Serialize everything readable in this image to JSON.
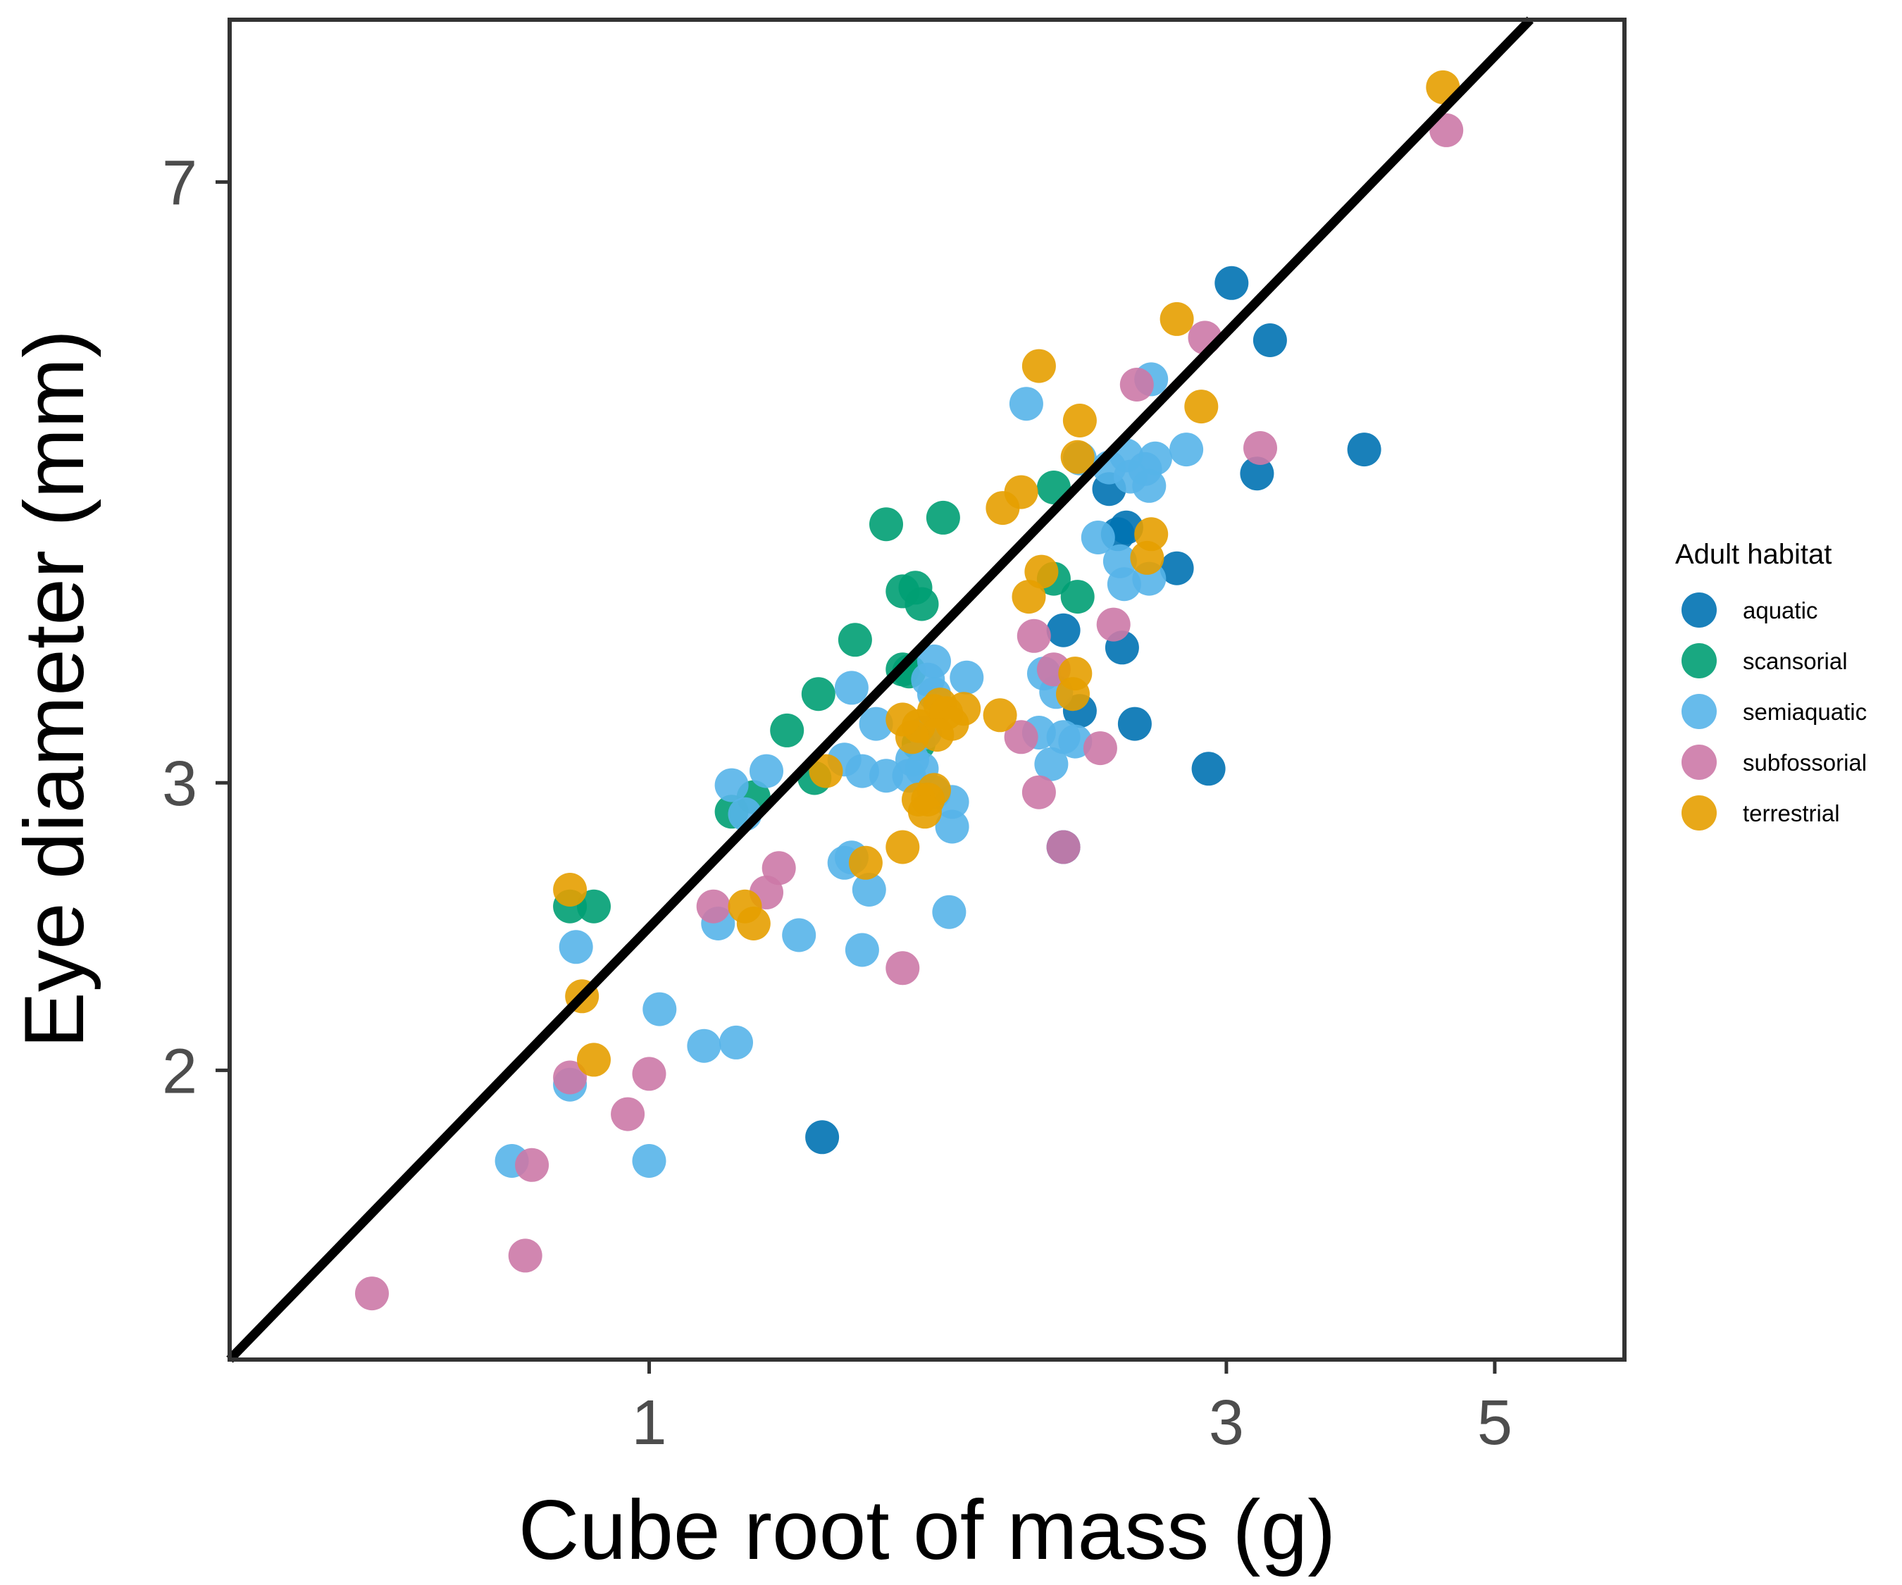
{
  "chart_data": {
    "type": "scatter",
    "title": "",
    "xlabel": "Cube root of mass (g)",
    "ylabel": "Eye diameter (mm)",
    "x_scale": "log",
    "y_scale": "log",
    "xlim": [
      0.45,
      6.4
    ],
    "ylim": [
      1.33,
      8.8
    ],
    "x_ticks": [
      1,
      3,
      5
    ],
    "x_tick_labels": [
      "1",
      "3",
      "5"
    ],
    "y_ticks": [
      2,
      3,
      7
    ],
    "y_tick_labels": [
      "2",
      "3",
      "7"
    ],
    "grid": false,
    "legend": {
      "title": "Adult habitat",
      "position": "right"
    },
    "fit_line": {
      "color": "#000000",
      "points": [
        [
          0.45,
          1.33
        ],
        [
          5.35,
          8.8
        ]
      ]
    },
    "series": [
      {
        "name": "aquatic",
        "color": "#0072B2",
        "points": [
          [
            3.03,
            6.07
          ],
          [
            3.26,
            5.6
          ],
          [
            3.9,
            4.8
          ],
          [
            3.18,
            4.64
          ],
          [
            2.4,
            4.54
          ],
          [
            2.48,
            4.3
          ],
          [
            2.44,
            4.26
          ],
          [
            2.73,
            4.06
          ],
          [
            2.2,
            3.72
          ],
          [
            2.46,
            3.63
          ],
          [
            2.27,
            3.32
          ],
          [
            2.52,
            3.26
          ],
          [
            2.9,
            3.06
          ],
          [
            2.2,
            2.74
          ],
          [
            1.39,
            1.82
          ]
        ]
      },
      {
        "name": "scansorial",
        "color": "#009E73",
        "points": [
          [
            1.57,
            4.32
          ],
          [
            1.75,
            4.36
          ],
          [
            1.62,
            3.93
          ],
          [
            1.66,
            3.95
          ],
          [
            1.68,
            3.86
          ],
          [
            2.16,
            4.55
          ],
          [
            2.16,
            4.0
          ],
          [
            2.26,
            3.9
          ],
          [
            1.48,
            3.67
          ],
          [
            1.62,
            3.52
          ],
          [
            1.64,
            3.51
          ],
          [
            1.38,
            3.4
          ],
          [
            1.3,
            3.23
          ],
          [
            1.17,
            2.88
          ],
          [
            1.67,
            3.17
          ],
          [
            1.37,
            3.02
          ],
          [
            1.22,
            2.94
          ],
          [
            0.86,
            2.52
          ],
          [
            0.9,
            2.52
          ]
        ]
      },
      {
        "name": "semiaquatic",
        "color": "#56B4E9",
        "points": [
          [
            2.6,
            5.3
          ],
          [
            2.05,
            5.12
          ],
          [
            2.78,
            4.8
          ],
          [
            2.27,
            4.74
          ],
          [
            2.4,
            4.68
          ],
          [
            2.48,
            4.76
          ],
          [
            2.57,
            4.67
          ],
          [
            2.62,
            4.74
          ],
          [
            2.5,
            4.62
          ],
          [
            2.59,
            4.56
          ],
          [
            2.35,
            4.24
          ],
          [
            2.45,
            4.1
          ],
          [
            2.59,
            4.0
          ],
          [
            2.47,
            3.97
          ],
          [
            1.72,
            3.56
          ],
          [
            1.7,
            3.47
          ],
          [
            2.12,
            3.5
          ],
          [
            2.17,
            3.41
          ],
          [
            1.47,
            3.43
          ],
          [
            1.54,
            3.26
          ],
          [
            1.72,
            3.4
          ],
          [
            1.83,
            3.48
          ],
          [
            1.69,
            3.22
          ],
          [
            2.1,
            3.22
          ],
          [
            2.2,
            3.2
          ],
          [
            2.25,
            3.18
          ],
          [
            2.15,
            3.08
          ],
          [
            1.68,
            3.06
          ],
          [
            1.64,
            3.03
          ],
          [
            1.57,
            3.03
          ],
          [
            1.5,
            3.05
          ],
          [
            1.65,
            3.1
          ],
          [
            1.45,
            3.1
          ],
          [
            1.25,
            3.05
          ],
          [
            1.72,
            2.96
          ],
          [
            1.78,
            2.92
          ],
          [
            1.17,
            2.99
          ],
          [
            1.2,
            2.87
          ],
          [
            1.78,
            2.82
          ],
          [
            1.47,
            2.7
          ],
          [
            1.45,
            2.68
          ],
          [
            1.52,
            2.58
          ],
          [
            1.77,
            2.5
          ],
          [
            1.14,
            2.46
          ],
          [
            1.33,
            2.42
          ],
          [
            1.5,
            2.37
          ],
          [
            0.87,
            2.38
          ],
          [
            1.02,
            2.18
          ],
          [
            1.11,
            2.07
          ],
          [
            1.18,
            2.08
          ],
          [
            0.86,
            1.96
          ],
          [
            0.77,
            1.76
          ],
          [
            1.0,
            1.76
          ]
        ]
      },
      {
        "name": "subfossorial",
        "color": "#CC79A7",
        "points": [
          [
            4.56,
            7.53
          ],
          [
            2.88,
            5.62
          ],
          [
            2.53,
            5.26
          ],
          [
            3.2,
            4.81
          ],
          [
            2.42,
            3.75
          ],
          [
            2.08,
            3.69
          ],
          [
            2.16,
            3.52
          ],
          [
            2.03,
            3.2
          ],
          [
            2.36,
            3.15
          ],
          [
            2.1,
            2.96
          ],
          [
            2.2,
            2.74
          ],
          [
            1.28,
            2.66
          ],
          [
            1.25,
            2.57
          ],
          [
            1.13,
            2.52
          ],
          [
            1.62,
            2.31
          ],
          [
            0.86,
            1.98
          ],
          [
            1.0,
            1.99
          ],
          [
            0.96,
            1.88
          ],
          [
            0.8,
            1.75
          ],
          [
            0.79,
            1.54
          ],
          [
            0.59,
            1.46
          ]
        ]
      },
      {
        "name": "terrestrial",
        "color": "#E69F00",
        "points": [
          [
            4.53,
            8.0
          ],
          [
            2.73,
            5.77
          ],
          [
            2.1,
            5.4
          ],
          [
            2.86,
            5.1
          ],
          [
            2.27,
            5.0
          ],
          [
            2.26,
            4.75
          ],
          [
            2.03,
            4.52
          ],
          [
            1.96,
            4.42
          ],
          [
            2.6,
            4.26
          ],
          [
            2.58,
            4.12
          ],
          [
            2.11,
            4.04
          ],
          [
            2.06,
            3.9
          ],
          [
            2.25,
            3.5
          ],
          [
            2.24,
            3.4
          ],
          [
            1.95,
            3.3
          ],
          [
            1.82,
            3.33
          ],
          [
            1.67,
            3.25
          ],
          [
            1.72,
            3.32
          ],
          [
            1.74,
            3.35
          ],
          [
            1.76,
            3.31
          ],
          [
            1.78,
            3.26
          ],
          [
            1.73,
            3.21
          ],
          [
            1.65,
            3.2
          ],
          [
            1.62,
            3.28
          ],
          [
            1.4,
            3.05
          ],
          [
            1.72,
            2.97
          ],
          [
            1.7,
            2.93
          ],
          [
            1.67,
            2.93
          ],
          [
            1.69,
            2.88
          ],
          [
            1.62,
            2.74
          ],
          [
            1.51,
            2.68
          ],
          [
            1.2,
            2.52
          ],
          [
            1.22,
            2.46
          ],
          [
            0.86,
            2.58
          ],
          [
            0.88,
            2.22
          ],
          [
            0.9,
            2.03
          ]
        ]
      }
    ]
  }
}
